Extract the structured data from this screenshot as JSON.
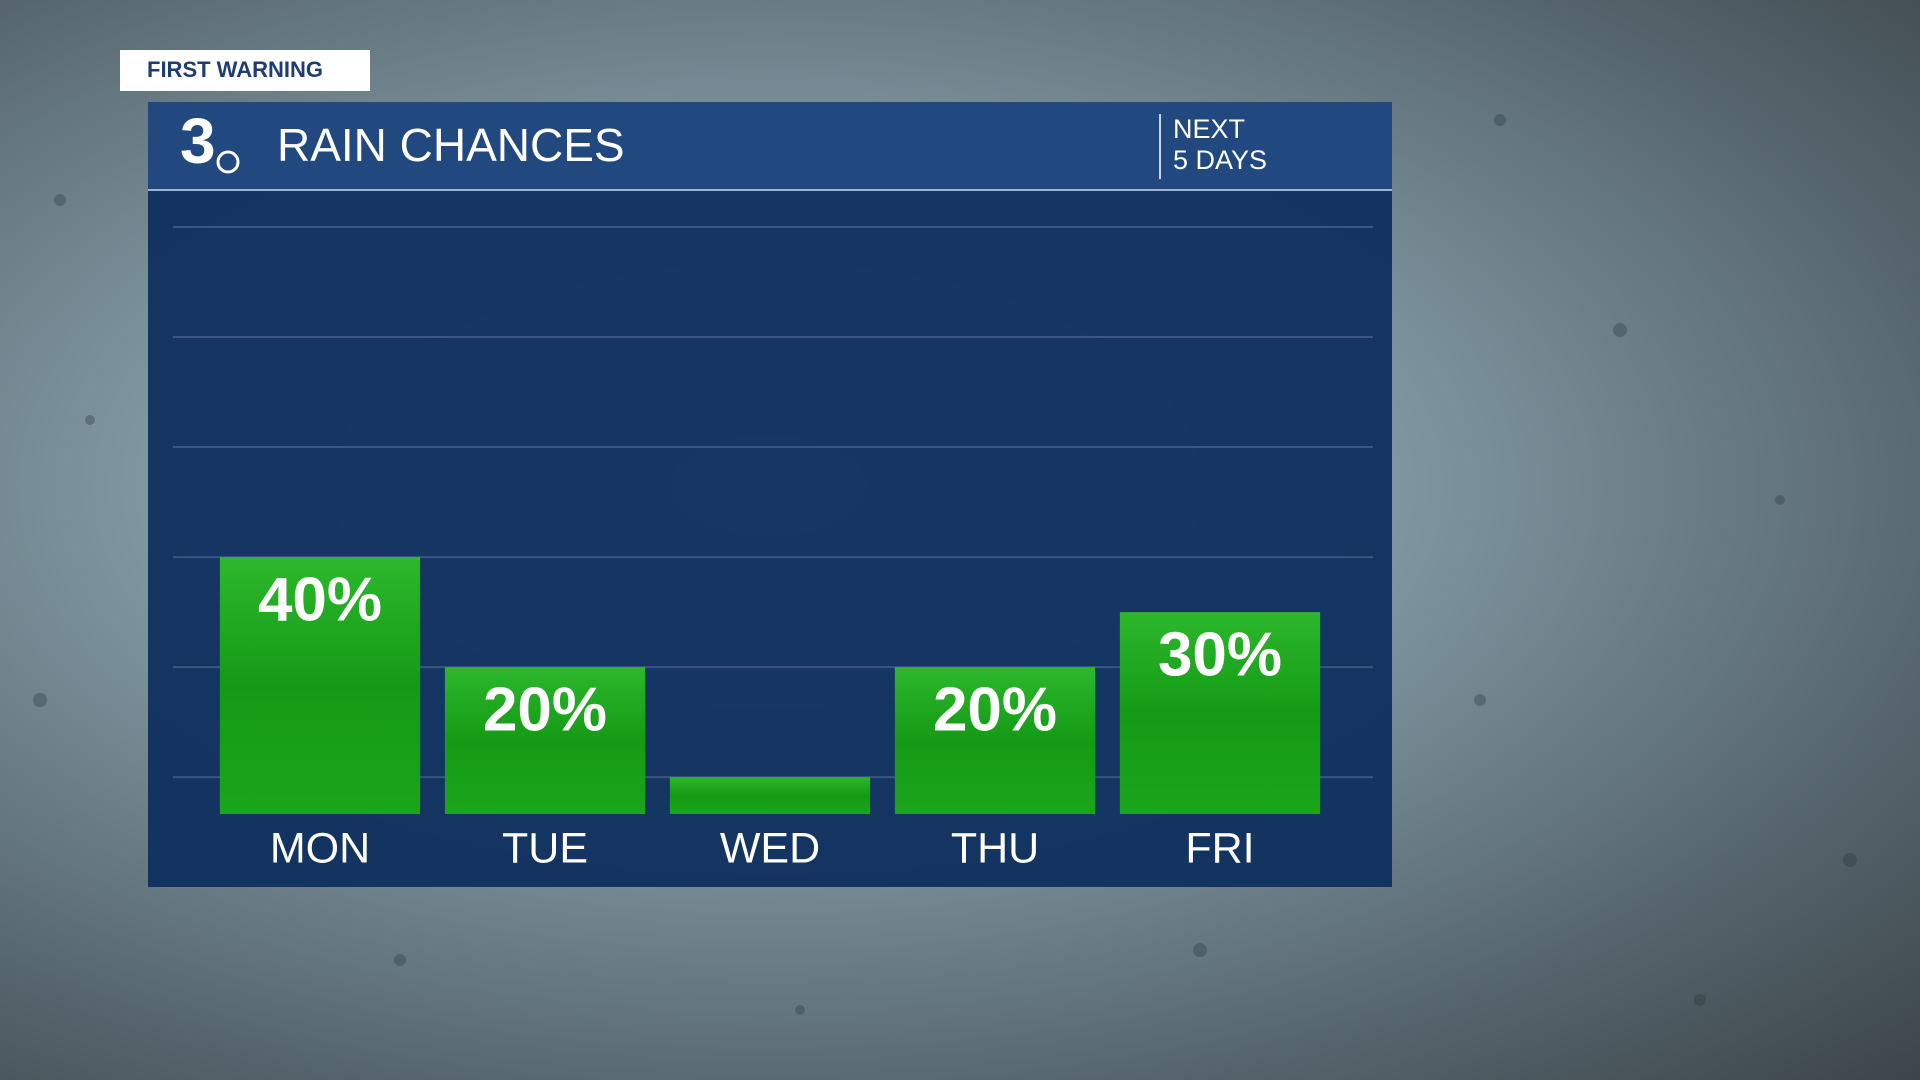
{
  "badge": "FIRST WARNING",
  "logo": "3",
  "period": [
    "NEXT",
    "5 DAYS"
  ],
  "chart_data": {
    "type": "bar",
    "title": "RAIN CHANCES",
    "categories": [
      "MON",
      "TUE",
      "WED",
      "THU",
      "FRI"
    ],
    "values": [
      40,
      20,
      0,
      20,
      30
    ],
    "value_labels": [
      "40%",
      "20%",
      null,
      "20%",
      "30%"
    ],
    "color": "#1a9e1a",
    "ylim": [
      -6.7,
      100
    ],
    "yticks": [
      0,
      20,
      40,
      60,
      80,
      100
    ],
    "grid": true
  }
}
